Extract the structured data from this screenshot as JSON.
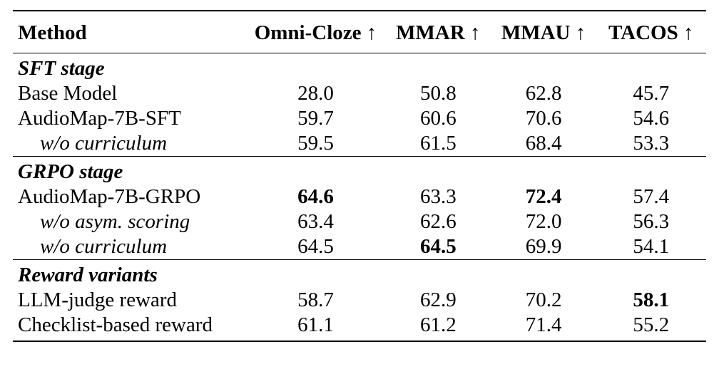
{
  "table": {
    "columns": [
      {
        "label": "Method"
      },
      {
        "label": "Omni-Cloze ↑"
      },
      {
        "label": "MMAR ↑"
      },
      {
        "label": "MMAU ↑"
      },
      {
        "label": "TACOS ↑"
      }
    ],
    "sections": [
      {
        "label": "SFT stage",
        "rows": [
          {
            "method": "Base Model",
            "ablation": false,
            "values": [
              "28.0",
              "50.8",
              "62.8",
              "45.7"
            ],
            "bold": [
              false,
              false,
              false,
              false
            ]
          },
          {
            "method": "AudioMap-7B-SFT",
            "ablation": false,
            "values": [
              "59.7",
              "60.6",
              "70.6",
              "54.6"
            ],
            "bold": [
              false,
              false,
              false,
              false
            ]
          },
          {
            "method": "w/o curriculum",
            "ablation": true,
            "values": [
              "59.5",
              "61.5",
              "68.4",
              "53.3"
            ],
            "bold": [
              false,
              false,
              false,
              false
            ]
          }
        ]
      },
      {
        "label": "GRPO stage",
        "rows": [
          {
            "method": "AudioMap-7B-GRPO",
            "ablation": false,
            "values": [
              "64.6",
              "63.3",
              "72.4",
              "57.4"
            ],
            "bold": [
              true,
              false,
              true,
              false
            ]
          },
          {
            "method": "w/o asym. scoring",
            "ablation": true,
            "values": [
              "63.4",
              "62.6",
              "72.0",
              "56.3"
            ],
            "bold": [
              false,
              false,
              false,
              false
            ]
          },
          {
            "method": "w/o curriculum",
            "ablation": true,
            "values": [
              "64.5",
              "64.5",
              "69.9",
              "54.1"
            ],
            "bold": [
              false,
              true,
              false,
              false
            ]
          }
        ]
      },
      {
        "label": "Reward variants",
        "rows": [
          {
            "method": "LLM-judge reward",
            "ablation": false,
            "values": [
              "58.7",
              "62.9",
              "70.2",
              "58.1"
            ],
            "bold": [
              false,
              false,
              false,
              true
            ]
          },
          {
            "method": "Checklist-based reward",
            "ablation": false,
            "values": [
              "61.1",
              "61.2",
              "71.4",
              "55.2"
            ],
            "bold": [
              false,
              false,
              false,
              false
            ]
          }
        ]
      }
    ]
  }
}
